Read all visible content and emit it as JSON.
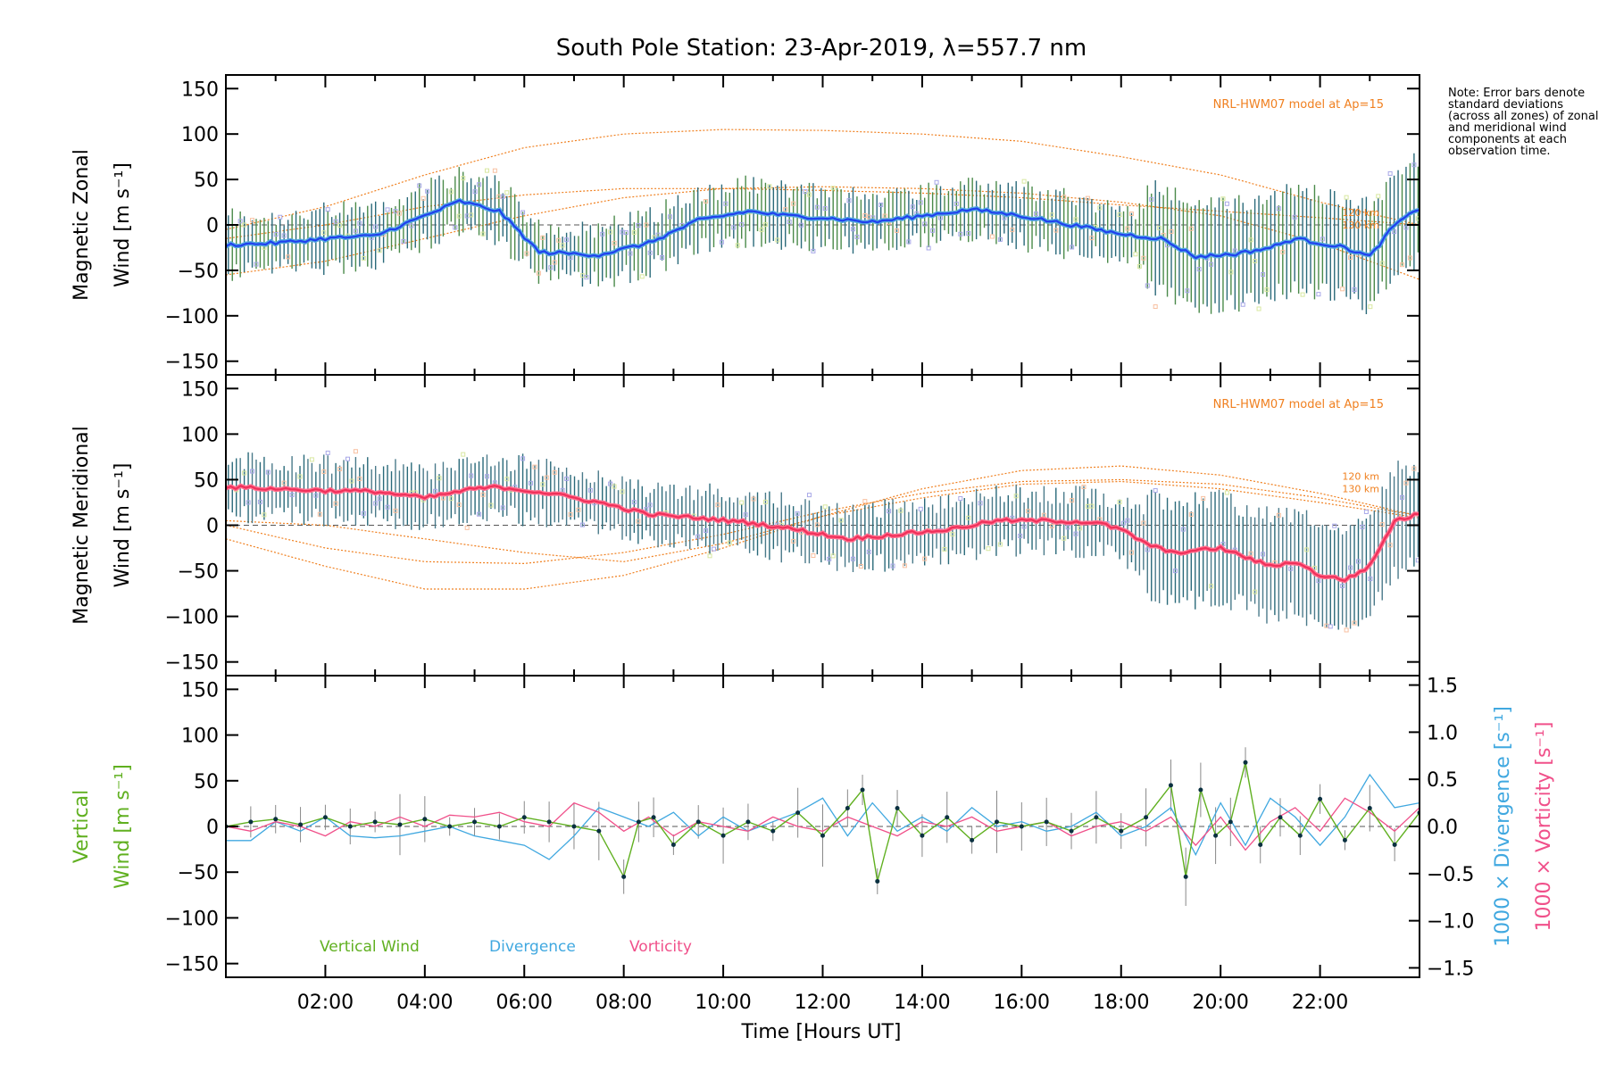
{
  "title": "South Pole Station: 23-Apr-2019, λ=557.7 nm",
  "note": "Note: Error bars denote standard deviations (across all zones) of zonal and meridional wind components at each observation time.",
  "colors": {
    "zonal": "#2040ee",
    "zonal_light": "#55aae0",
    "meridional": "#f0305a",
    "model": "#f08020",
    "vertical": "#60b020",
    "divergence": "#40a8e0",
    "vorticity": "#f0508a",
    "errorbar_zonal": "#2a6a7a",
    "scatter": "#a8a8e8"
  },
  "chart_data": [
    {
      "type": "line",
      "name": "Magnetic Zonal Wind",
      "ylabel": "Magnetic Zonal Wind [m s⁻¹]",
      "ylabel_lines": [
        "Magnetic Zonal",
        "Wind [m s⁻¹]"
      ],
      "xlim": [
        0,
        24
      ],
      "ylim": [
        -165,
        165
      ],
      "yticks": [
        150,
        100,
        50,
        0,
        -50,
        -100,
        -150
      ],
      "annotation": "NRL-HWM07 model at Ap=15",
      "model_labels": [
        "120 km",
        "130 km"
      ],
      "series": [
        {
          "name": "Zonal wind (smoothed)",
          "x": [
            0,
            1,
            2,
            3,
            4,
            4.7,
            5.5,
            6.3,
            7.5,
            8.5,
            9.5,
            10.5,
            11.3,
            12,
            13,
            14,
            15,
            16,
            17,
            18,
            18.8,
            19.5,
            20.3,
            21,
            21.5,
            22,
            22.5,
            23,
            23.5,
            24
          ],
          "y": [
            -22,
            -20,
            -15,
            -12,
            10,
            26,
            15,
            -30,
            -33,
            -20,
            5,
            15,
            10,
            8,
            3,
            10,
            17,
            10,
            0,
            -10,
            -15,
            -35,
            -32,
            -25,
            -15,
            -20,
            -25,
            -35,
            0,
            18
          ]
        },
        {
          "name": "NRL-HWM07 model",
          "curves": [
            {
              "x": [
                0,
                2,
                4,
                6,
                8,
                10,
                12,
                14,
                16,
                18,
                20,
                22,
                24
              ],
              "y": [
                -5,
                20,
                55,
                85,
                100,
                105,
                104,
                100,
                92,
                75,
                55,
                25,
                0
              ]
            },
            {
              "x": [
                0,
                2,
                4,
                6,
                8,
                10,
                12,
                14,
                16,
                18,
                20,
                22,
                24
              ],
              "y": [
                -15,
                0,
                20,
                33,
                40,
                40,
                38,
                35,
                30,
                22,
                15,
                8,
                0
              ]
            },
            {
              "x": [
                0,
                2,
                4,
                6,
                8,
                10,
                12,
                14,
                16,
                18,
                20,
                22,
                24
              ],
              "y": [
                -55,
                -40,
                -15,
                10,
                30,
                40,
                42,
                40,
                35,
                25,
                10,
                -20,
                -60
              ]
            }
          ]
        }
      ]
    },
    {
      "type": "line",
      "name": "Magnetic Meridional Wind",
      "ylabel": "Magnetic Meridional Wind [m s⁻¹]",
      "ylabel_lines": [
        "Magnetic Meridional",
        "Wind [m s⁻¹]"
      ],
      "xlim": [
        0,
        24
      ],
      "ylim": [
        -165,
        165
      ],
      "yticks": [
        150,
        100,
        50,
        0,
        -50,
        -100,
        -150
      ],
      "annotation": "NRL-HWM07 model at Ap=15",
      "model_labels": [
        "120 km",
        "130 km"
      ],
      "series": [
        {
          "name": "Meridional wind (smoothed)",
          "x": [
            0,
            1,
            2,
            3,
            4,
            5,
            5.5,
            6.5,
            7.5,
            8.5,
            9.5,
            10.5,
            11.5,
            12.5,
            13.5,
            14.5,
            15.5,
            16.5,
            17.5,
            18,
            18.5,
            19,
            19.5,
            20,
            20.5,
            21,
            21.5,
            22,
            22.5,
            23,
            23.5,
            24
          ],
          "y": [
            42,
            40,
            38,
            37,
            30,
            40,
            42,
            35,
            25,
            12,
            8,
            3,
            -5,
            -15,
            -10,
            -5,
            5,
            5,
            3,
            -5,
            -20,
            -30,
            -28,
            -25,
            -35,
            -45,
            -40,
            -55,
            -60,
            -45,
            5,
            12
          ]
        },
        {
          "name": "NRL-HWM07 model",
          "curves": [
            {
              "x": [
                0,
                2,
                4,
                6,
                8,
                10,
                12,
                14,
                16,
                18,
                20,
                22,
                24
              ],
              "y": [
                -15,
                -45,
                -70,
                -70,
                -55,
                -25,
                10,
                40,
                60,
                65,
                55,
                35,
                10
              ]
            },
            {
              "x": [
                0,
                2,
                4,
                6,
                8,
                10,
                12,
                14,
                16,
                18,
                20,
                22,
                24
              ],
              "y": [
                0,
                -25,
                -40,
                -42,
                -30,
                -10,
                15,
                35,
                48,
                50,
                45,
                30,
                10
              ]
            },
            {
              "x": [
                0,
                2,
                4,
                6,
                8,
                10,
                12,
                14,
                16,
                18,
                20,
                22,
                24
              ],
              "y": [
                5,
                0,
                -15,
                -30,
                -40,
                -20,
                10,
                30,
                45,
                48,
                40,
                25,
                8
              ]
            }
          ]
        }
      ]
    },
    {
      "type": "line",
      "name": "Vertical Wind, Divergence, Vorticity",
      "ylabel": "Vertical Wind [m s⁻¹]",
      "ylabel_lines": [
        "Vertical",
        "Wind [m s⁻¹]"
      ],
      "y2label_divergence": "1000 × Divergence [s⁻¹]",
      "y2label_vorticity": "1000 × Vorticity [s⁻¹]",
      "xlabel": "Time [Hours UT]",
      "xlim": [
        0,
        24
      ],
      "ylim": [
        -165,
        165
      ],
      "yticks": [
        150,
        100,
        50,
        0,
        -50,
        -100,
        -150
      ],
      "y2lim": [
        -1.6,
        1.6
      ],
      "y2ticks": [
        1.5,
        1.0,
        0.5,
        0.0,
        -0.5,
        -1.0,
        -1.5
      ],
      "y2tick_labels": [
        "1.5",
        "1.0",
        "0.5",
        "0.0",
        "−0.5",
        "−1.0",
        "−1.5"
      ],
      "xticks": [
        2,
        4,
        6,
        8,
        10,
        12,
        14,
        16,
        18,
        20,
        22
      ],
      "xtick_labels": [
        "02:00",
        "04:00",
        "06:00",
        "08:00",
        "10:00",
        "12:00",
        "14:00",
        "16:00",
        "18:00",
        "20:00",
        "22:00"
      ],
      "legend": [
        "Vertical Wind",
        "Divergence",
        "Vorticity"
      ],
      "series": [
        {
          "name": "Vertical Wind",
          "x": [
            0,
            0.5,
            1,
            1.5,
            2,
            2.5,
            3,
            3.5,
            4,
            4.5,
            5,
            5.5,
            6,
            6.5,
            7,
            7.5,
            8,
            8.3,
            8.6,
            9,
            9.5,
            10,
            10.5,
            11,
            11.5,
            12,
            12.5,
            12.8,
            13.1,
            13.5,
            14,
            14.5,
            15,
            15.5,
            16,
            16.5,
            17,
            17.5,
            18,
            18.5,
            19,
            19.3,
            19.6,
            19.9,
            20.2,
            20.5,
            20.8,
            21.2,
            21.6,
            22,
            22.5,
            23,
            23.5,
            24
          ],
          "y": [
            0,
            5,
            8,
            2,
            10,
            0,
            5,
            2,
            8,
            0,
            5,
            0,
            10,
            5,
            0,
            -5,
            -55,
            5,
            10,
            -20,
            5,
            -10,
            5,
            -5,
            15,
            -10,
            20,
            40,
            -60,
            20,
            -10,
            10,
            -15,
            5,
            0,
            5,
            -5,
            10,
            -5,
            10,
            45,
            -55,
            40,
            -10,
            5,
            70,
            -20,
            10,
            -10,
            30,
            -15,
            20,
            -20,
            15
          ]
        },
        {
          "name": "Divergence",
          "x": [
            0,
            0.5,
            1,
            1.5,
            2,
            2.5,
            3,
            3.5,
            4,
            4.5,
            5,
            5.5,
            6,
            6.5,
            7,
            7.5,
            8,
            8.5,
            9,
            9.5,
            10,
            10.5,
            11,
            11.5,
            12,
            12.5,
            13,
            13.5,
            14,
            14.5,
            15,
            15.5,
            16,
            16.5,
            17,
            17.5,
            18,
            18.5,
            19,
            19.5,
            20,
            20.5,
            21,
            21.5,
            22,
            22.5,
            23,
            23.5,
            24
          ],
          "y": [
            -0.15,
            -0.15,
            0.05,
            -0.05,
            0.1,
            -0.1,
            -0.12,
            -0.1,
            -0.05,
            0.0,
            -0.1,
            -0.15,
            -0.2,
            -0.35,
            -0.1,
            0.2,
            0.1,
            0.0,
            0.15,
            -0.1,
            0.1,
            -0.05,
            0.05,
            0.15,
            0.3,
            -0.1,
            0.25,
            -0.05,
            0.1,
            -0.05,
            0.2,
            0.0,
            0.05,
            -0.05,
            0.0,
            0.15,
            -0.1,
            0.0,
            0.2,
            -0.3,
            0.25,
            -0.2,
            0.3,
            0.1,
            -0.2,
            0.1,
            0.55,
            0.2,
            0.25
          ]
        },
        {
          "name": "Vorticity",
          "x": [
            0,
            0.5,
            1,
            1.5,
            2,
            2.5,
            3,
            3.5,
            4,
            4.5,
            5,
            5.5,
            6,
            6.5,
            7,
            7.5,
            8,
            8.5,
            9,
            9.5,
            10,
            10.5,
            11,
            11.5,
            12,
            12.5,
            13,
            13.5,
            14,
            14.5,
            15,
            15.5,
            16,
            16.5,
            17,
            17.5,
            18,
            18.5,
            19,
            19.5,
            20,
            20.5,
            21,
            21.5,
            22,
            22.5,
            23,
            23.5,
            24
          ],
          "y": [
            0.0,
            -0.05,
            0.05,
            0.0,
            -0.1,
            0.05,
            0.0,
            0.1,
            0.0,
            0.12,
            0.1,
            0.15,
            0.05,
            0.0,
            0.25,
            0.15,
            -0.05,
            0.1,
            -0.1,
            0.05,
            0.0,
            -0.05,
            0.1,
            0.0,
            -0.05,
            0.1,
            0.0,
            -0.1,
            0.05,
            0.0,
            0.1,
            -0.05,
            0.0,
            0.05,
            -0.1,
            0.0,
            0.05,
            -0.05,
            0.1,
            -0.2,
            0.1,
            -0.25,
            0.05,
            0.2,
            -0.05,
            0.3,
            0.15,
            -0.05,
            0.2
          ]
        }
      ]
    }
  ]
}
